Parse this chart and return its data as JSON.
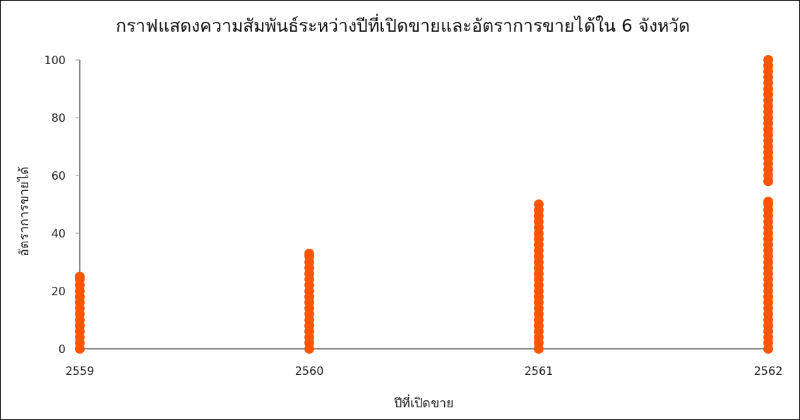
{
  "chart_data": {
    "type": "scatter",
    "title": "กราฟแสดงความสัมพันธ์ระหว่างปีที่เปิดขายและอัตราการขายได้ใน 6 จังหวัด",
    "xlabel": "ปีที่เปิดขาย",
    "ylabel": "อัตราการขายได้",
    "xlim": [
      2559,
      2562
    ],
    "xticks": [
      2559,
      2560,
      2561,
      2562
    ],
    "ylim": [
      0,
      100
    ],
    "yticks": [
      0,
      20,
      40,
      60,
      80,
      100
    ],
    "marker": "circle",
    "series": [
      {
        "color": "#ff5500",
        "x": [
          2559,
          2559,
          2559,
          2559,
          2559,
          2559,
          2559,
          2559,
          2559,
          2559,
          2559,
          2559,
          2559,
          2559,
          2560,
          2560,
          2560,
          2560,
          2560,
          2560,
          2560,
          2560,
          2560,
          2560,
          2560,
          2560,
          2560,
          2560,
          2560,
          2560,
          2560,
          2560,
          2561,
          2561,
          2561,
          2561,
          2561,
          2561,
          2561,
          2561,
          2561,
          2561,
          2561,
          2561,
          2561,
          2561,
          2561,
          2561,
          2561,
          2561,
          2561,
          2561,
          2561,
          2561,
          2561,
          2561,
          2561,
          2561,
          2562,
          2562,
          2562,
          2562,
          2562,
          2562,
          2562,
          2562,
          2562,
          2562,
          2562,
          2562,
          2562,
          2562,
          2562,
          2562,
          2562,
          2562,
          2562,
          2562,
          2562,
          2562,
          2562,
          2562,
          2562,
          2562,
          2562,
          2562,
          2562,
          2562,
          2562,
          2562,
          2562,
          2562,
          2562,
          2562,
          2562,
          2562,
          2562,
          2562,
          2562,
          2562,
          2562,
          2562,
          2562,
          2562,
          2562,
          2562,
          2562
        ],
        "values": [
          0,
          2,
          4,
          6,
          8,
          10,
          12,
          14,
          16,
          18,
          20,
          22,
          24,
          25,
          0,
          2,
          4,
          6,
          8,
          10,
          12,
          14,
          16,
          18,
          20,
          22,
          24,
          26,
          28,
          30,
          32,
          33,
          0,
          2,
          4,
          6,
          8,
          10,
          12,
          14,
          16,
          18,
          20,
          22,
          24,
          26,
          28,
          30,
          32,
          34,
          36,
          38,
          40,
          42,
          44,
          46,
          48,
          50,
          0,
          2,
          4,
          6,
          8,
          10,
          12,
          14,
          16,
          18,
          20,
          22,
          24,
          26,
          28,
          30,
          32,
          34,
          36,
          38,
          40,
          42,
          44,
          46,
          48,
          50,
          51,
          58,
          60,
          62,
          64,
          66,
          68,
          70,
          72,
          74,
          76,
          78,
          80,
          82,
          84,
          86,
          88,
          90,
          92,
          94,
          96,
          98,
          100
        ]
      }
    ]
  }
}
